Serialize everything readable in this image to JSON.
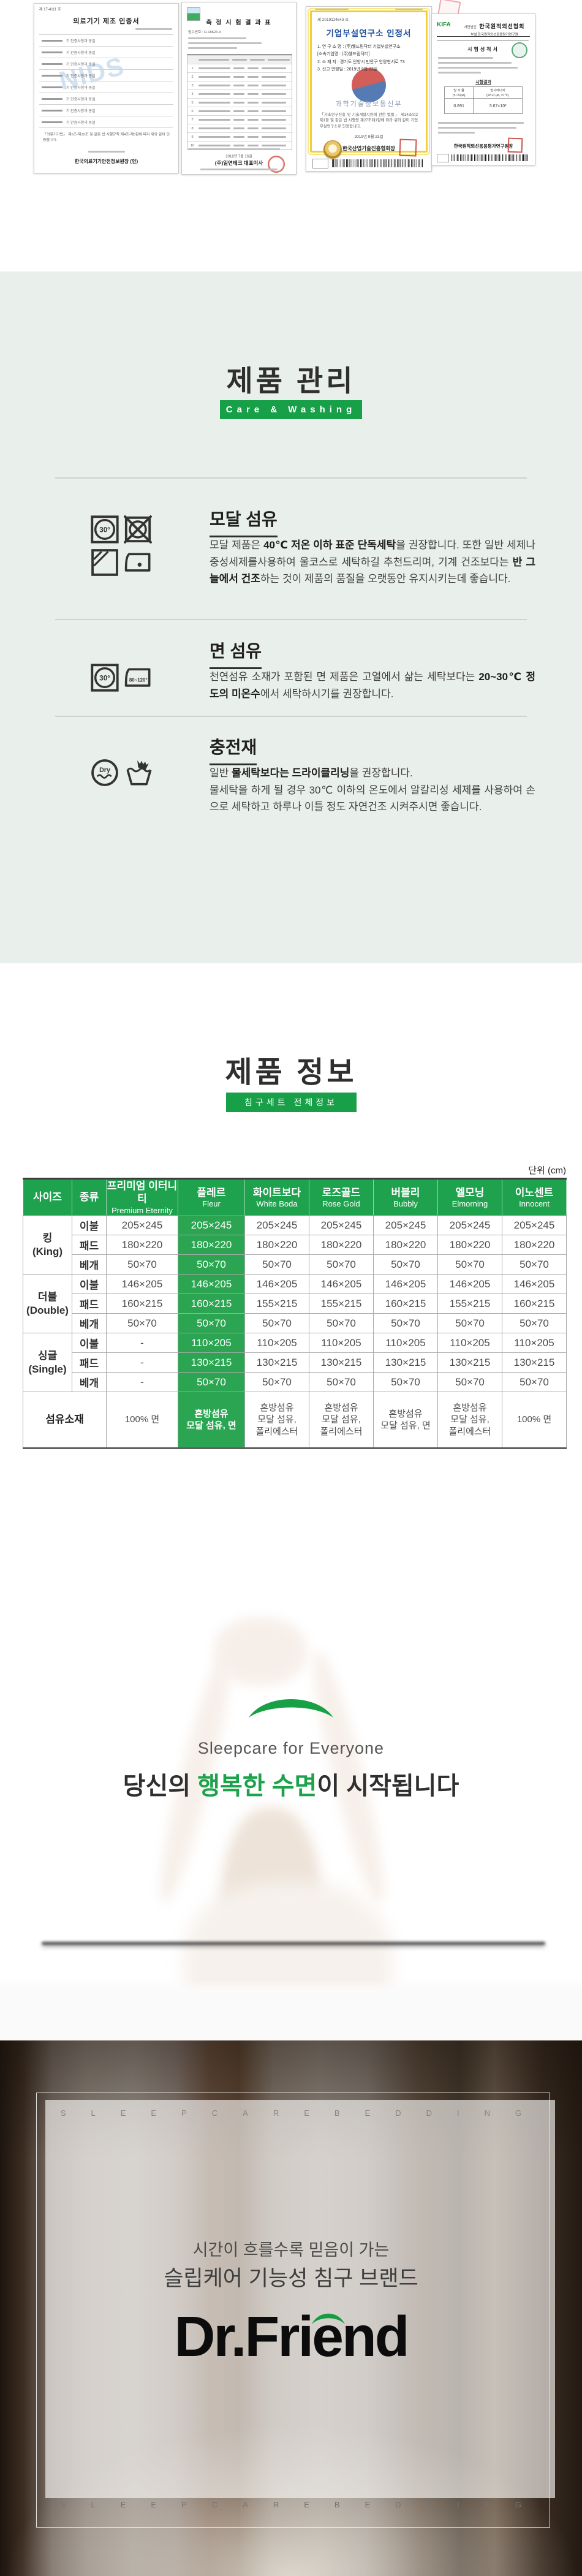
{
  "colors": {
    "green": "#18a049",
    "table_header_green": "#1ea24d",
    "highlight_green": "#2ba551",
    "headline_green": "#1ba24b",
    "section_bg": "#e9efea"
  },
  "certificates": {
    "doc1": {
      "doc_no": "제 17-4111 호",
      "title": "의료기기 제조 인증서",
      "rows_value": "기 인증사항과 동일",
      "note": "「의료기기법」 제6조·제15조 및 같은 법 시행규칙 제4조·제5항에 따라 위와 같이 인증합니다.",
      "issuer": "한국의료기기안전정보원장 (인)",
      "watermark": "NIDS"
    },
    "doc2": {
      "title": "측 정 시 험 결 과 표",
      "field1": "접수번호 : R-18623-3",
      "date": "2018년 7월 16일",
      "signer": "(주)일연테크 대표이사"
    },
    "doc3": {
      "doc_no": "제 2019114643 호",
      "title": "기업부설연구소 인정서",
      "items": [
        "1. 연 구 소 명 : (주)웰드림닥터 기업부설연구소",
        "[소속기업명 : (주)웰드림닥터]",
        "2. 소  재  지 : 경기도 안양시 만안구 안양천서로 73",
        "3. 신고 연월일 : 2019년 9월 23일"
      ],
      "ministry": "과학기술정보통신부",
      "body": "「기초연구진흥 및 기술개발지원에 관한 법률」 제14조의2 제1항 및 같은 법 시행령 제27조제1항에 따라 위와 같이 기업부설연구소로 인정합니다.",
      "date": "2019년 9월 23일",
      "org": "한국산업기술진흥협회장"
    },
    "doc4": {
      "kifa": "KIFA",
      "assoc_prefix": "사단법인",
      "assoc": "한국원적외선협회",
      "sub": "부설 한국원적외선응용평가연구원",
      "title": "시험성적서",
      "result_title": "시험결과",
      "table": {
        "col1": "방 사 율\n(5~20㎛)",
        "col2": "방사에너지\n(W/㎡·㎛, 37℃)",
        "val1": "0.891",
        "val2": "3.67×10²"
      },
      "issuer": "한국원적외선응용평가연구원장"
    }
  },
  "care": {
    "title": "제품 관리",
    "badge": "Care & Washing",
    "items": [
      {
        "heading": "모달 섬유",
        "icons": [
          "wash-30",
          "no-tumble-dry",
          "dry-in-shade",
          "iron-low"
        ],
        "paras": [
          [
            {
              "t": "모달 제품은 "
            },
            {
              "t": "40℃ 저온 이하 표준 단독세탁",
              "b": 1
            },
            {
              "t": "을 권장합니다. 또한 일반 세제나 중성세제를사용하여 울코스로 세탁하길 추천드리며, 기계 건조보다는 "
            },
            {
              "t": "반 그늘에서 건조",
              "b": 1
            },
            {
              "t": "하는 것이 제품의 품질을 오랫동안 유지시키는데 좋습니다."
            }
          ]
        ]
      },
      {
        "heading": "면 섬유",
        "icons": [
          "wash-30",
          "iron-80-120"
        ],
        "paras": [
          [
            {
              "t": "천연섬유 소재가 포함된 면 제품은 고열에서 삶는 세탁보다는 "
            },
            {
              "t": "20~30℃ 정도의 미온수",
              "b": 1
            },
            {
              "t": "에서 세탁하시기를 권장합니다."
            }
          ]
        ]
      },
      {
        "heading": "충전재",
        "icons": [
          "dry-clean",
          "hand-wash"
        ],
        "paras": [
          [
            {
              "t": "일반 "
            },
            {
              "t": "물세탁보다는 드라이클리닝",
              "b": 1
            },
            {
              "t": "을 권장합니다."
            }
          ],
          [
            {
              "t": "물세탁을 하게 될 경우 30℃ 이하의 온도에서 알칼리성 세제를 사용하여 손으로 세탁하고 하루나 이틀 정도 자연건조 시켜주시면 좋습니다."
            }
          ]
        ]
      }
    ]
  },
  "info": {
    "title": "제품 정보",
    "badge": "침구세트 전체정보",
    "unit": "단위 (cm)",
    "table": {
      "highlight_col": 3,
      "headers": [
        {
          "kr": "사이즈",
          "en": ""
        },
        {
          "kr": "종류",
          "en": ""
        },
        {
          "kr": "프리미엄 이터니티",
          "en": "Premium Eternity"
        },
        {
          "kr": "플레르",
          "en": "Fleur"
        },
        {
          "kr": "화이트보다",
          "en": "White Boda"
        },
        {
          "kr": "로즈골드",
          "en": "Rose Gold"
        },
        {
          "kr": "버블리",
          "en": "Bubbly"
        },
        {
          "kr": "엘모닝",
          "en": "Elmorning"
        },
        {
          "kr": "이노센트",
          "en": "Innocent"
        }
      ],
      "groups": [
        {
          "size_kr": "킹",
          "size_en": "(King)",
          "rows": [
            {
              "type": "이불",
              "values": [
                "205×245",
                "205×245",
                "205×245",
                "205×245",
                "205×245",
                "205×245",
                "205×245"
              ]
            },
            {
              "type": "패드",
              "values": [
                "180×220",
                "180×220",
                "180×220",
                "180×220",
                "180×220",
                "180×220",
                "180×220"
              ]
            },
            {
              "type": "베개",
              "values": [
                "50×70",
                "50×70",
                "50×70",
                "50×70",
                "50×70",
                "50×70",
                "50×70"
              ]
            }
          ]
        },
        {
          "size_kr": "더블",
          "size_en": "(Double)",
          "rows": [
            {
              "type": "이불",
              "values": [
                "146×205",
                "146×205",
                "146×205",
                "146×205",
                "146×205",
                "146×205",
                "146×205"
              ]
            },
            {
              "type": "패드",
              "values": [
                "160×215",
                "160×215",
                "155×215",
                "155×215",
                "160×215",
                "155×215",
                "160×215"
              ]
            },
            {
              "type": "베개",
              "values": [
                "50×70",
                "50×70",
                "50×70",
                "50×70",
                "50×70",
                "50×70",
                "50×70"
              ]
            }
          ]
        },
        {
          "size_kr": "싱글",
          "size_en": "(Single)",
          "rows": [
            {
              "type": "이불",
              "values": [
                "-",
                "110×205",
                "110×205",
                "110×205",
                "110×205",
                "110×205",
                "110×205"
              ]
            },
            {
              "type": "패드",
              "values": [
                "-",
                "130×215",
                "130×215",
                "130×215",
                "130×215",
                "130×215",
                "130×215"
              ]
            },
            {
              "type": "베개",
              "values": [
                "-",
                "50×70",
                "50×70",
                "50×70",
                "50×70",
                "50×70",
                "50×70"
              ]
            }
          ]
        }
      ],
      "material_row": {
        "label": "섬유소재",
        "values": [
          "100% 면",
          "혼방섬유\n모달 섬유, 면",
          "혼방섬유\n모달 섬유,\n폴리에스터",
          "혼방섬유\n모달 섬유,\n폴리에스터",
          "혼방섬유\n모달 섬유, 면",
          "혼방섬유\n모달 섬유,\n폴리에스터",
          "100% 면"
        ]
      }
    }
  },
  "hero": {
    "subtitle": "Sleepcare for Everyone",
    "headline": [
      {
        "t": "당신의 "
      },
      {
        "t": "행복한 수면",
        "green": 1
      },
      {
        "t": "이 시작됩니다"
      }
    ]
  },
  "brand": {
    "watermark": "SLEEPCAREBEDDING",
    "tagline1": "시간이 흐를수록 믿음이 가는",
    "tagline2": "슬립케어 기능성 침구 브랜드",
    "logo": "Dr.Friend"
  }
}
